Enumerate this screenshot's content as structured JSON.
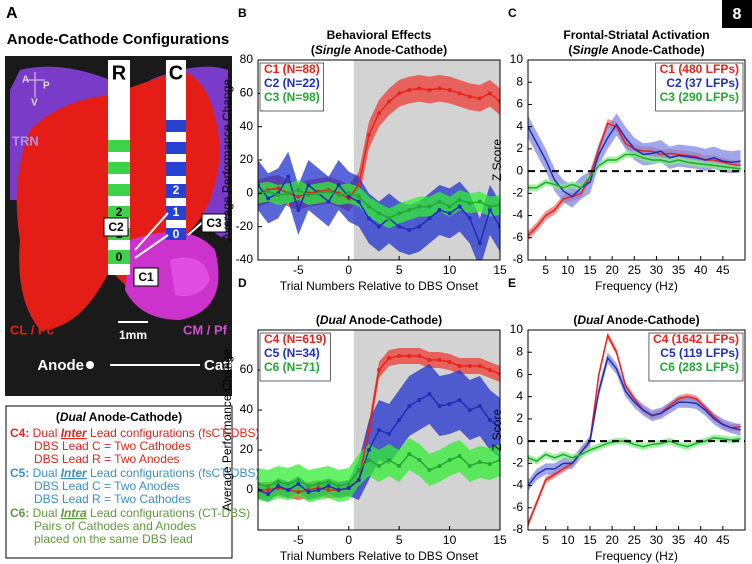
{
  "page_number": "8",
  "panel_a": {
    "label": "A",
    "title": "Anode-Cathode Configurations",
    "orientation": {
      "anterior": "A",
      "posterior": "P",
      "ventral": "V"
    },
    "leads": [
      {
        "name": "R",
        "contacts": [
          "2",
          "1",
          "0"
        ]
      },
      {
        "name": "C",
        "contacts": [
          "2",
          "1",
          "0"
        ]
      }
    ],
    "regions": [
      "TRN",
      "CL / Pc",
      "CM / Pf"
    ],
    "configs": [
      "C1",
      "C2",
      "C3"
    ],
    "scale": "1mm",
    "direction": {
      "from": "Anode",
      "to": "Cathode"
    }
  },
  "configurations_legend": {
    "heading": {
      "pre": "(",
      "em": "Dual",
      "post": " Anode-Cathode)"
    },
    "items": [
      {
        "id": "C4:",
        "pre": " Dual ",
        "em": "Inter",
        "post": " Lead configurations (fsCT-DBS)",
        "lines": [
          "DBS Lead C = Two Cathodes",
          "DBS Lead R = Two Anodes"
        ],
        "color": "#e0261d"
      },
      {
        "id": "C5:",
        "pre": " Dual ",
        "em": "Inter",
        "post": " Lead configurations (fsCT-DBS)",
        "lines": [
          "DBS Lead C = Two Anodes",
          "DBS Lead R = Two Cathodes"
        ],
        "color": "#3c8fc4"
      },
      {
        "id": "C6:",
        "pre": " Dual ",
        "em": "Intra",
        "post": " Lead configurations (CT-DBS)",
        "lines": [
          "Pairs of Cathodes and Anodes",
          "placed on the same DBS lead"
        ],
        "color": "#5f9a3c"
      }
    ]
  },
  "chart_data": [
    {
      "type": "line",
      "panel_label": "B",
      "title": "Behavioral Effects",
      "subtitle": {
        "pre": "(",
        "em": "Single",
        "post": " Anode-Cathode)"
      },
      "xlabel": "Trial Numbers Relative to DBS Onset",
      "ylabel": "Average Performance Change",
      "x": [
        -9,
        -8,
        -7,
        -6,
        -5,
        -4,
        -3,
        -2,
        -1,
        0,
        1,
        2,
        3,
        4,
        5,
        6,
        7,
        8,
        9,
        10,
        11,
        12,
        13,
        14,
        15
      ],
      "xlim": [
        -9,
        15
      ],
      "xticks": [
        -5,
        0,
        5,
        10,
        15
      ],
      "ylim": [
        -40,
        80
      ],
      "yticks": [
        -40,
        -20,
        0,
        20,
        40,
        60,
        80
      ],
      "shade_x": [
        0.5,
        15
      ],
      "markers": true,
      "legend": "upper left",
      "series": [
        {
          "name": "C1 (N=88)",
          "color": "#e8231c",
          "band_color": "#ee3b35",
          "values": [
            0,
            2,
            3,
            0,
            -2,
            0,
            1,
            2,
            0,
            -3,
            5,
            35,
            48,
            55,
            60,
            62,
            63,
            62,
            63,
            62,
            60,
            58,
            57,
            60,
            55
          ],
          "errors": [
            8,
            8,
            8,
            8,
            8,
            8,
            8,
            8,
            8,
            8,
            8,
            8,
            8,
            8,
            8,
            8,
            8,
            8,
            8,
            8,
            8,
            8,
            8,
            8,
            8
          ]
        },
        {
          "name": "C2 (N=22)",
          "color": "#1f2fb8",
          "band_color": "#2233cc",
          "values": [
            5,
            -3,
            0,
            10,
            -10,
            5,
            0,
            -5,
            5,
            -2,
            -5,
            -15,
            -20,
            -15,
            -20,
            -22,
            -20,
            -15,
            -10,
            -12,
            -8,
            -15,
            -30,
            -10,
            -20
          ],
          "errors": [
            15,
            15,
            15,
            15,
            15,
            15,
            15,
            15,
            15,
            15,
            15,
            15,
            15,
            15,
            15,
            15,
            15,
            15,
            15,
            15,
            15,
            15,
            15,
            15,
            15
          ]
        },
        {
          "name": "C3 (N=98)",
          "color": "#22a833",
          "band_color": "#33ee33",
          "values": [
            0,
            1,
            -1,
            0,
            2,
            -1,
            0,
            1,
            -1,
            0,
            -2,
            -8,
            -12,
            -15,
            -12,
            -10,
            -8,
            -8,
            -5,
            -8,
            -4,
            -6,
            -5,
            -8,
            -7
          ],
          "errors": [
            6,
            6,
            6,
            6,
            6,
            6,
            6,
            6,
            6,
            6,
            6,
            6,
            6,
            6,
            6,
            6,
            6,
            6,
            6,
            6,
            6,
            6,
            6,
            6,
            6
          ]
        }
      ]
    },
    {
      "type": "line",
      "panel_label": "C",
      "title": "Frontal-Striatal Activation",
      "subtitle": {
        "pre": "(",
        "em": "Single",
        "post": " Anode-Cathode)"
      },
      "xlabel": "Frequency (Hz)",
      "ylabel": "Z Score",
      "x": [
        1,
        3,
        5,
        7,
        9,
        11,
        13,
        15,
        17,
        19,
        21,
        23,
        25,
        27,
        29,
        31,
        33,
        35,
        37,
        39,
        41,
        43,
        45,
        47,
        49
      ],
      "xlim": [
        1,
        50
      ],
      "xticks": [
        5,
        10,
        15,
        20,
        25,
        30,
        35,
        40,
        45
      ],
      "ylim": [
        -8,
        10
      ],
      "yticks": [
        -8,
        -6,
        -4,
        -2,
        0,
        2,
        4,
        6,
        8,
        10
      ],
      "hline": 0,
      "markers": false,
      "legend": "upper right",
      "series": [
        {
          "name": "C1 (480 LFPs)",
          "color": "#e8231c",
          "band_color": "#f07070",
          "values": [
            -5.8,
            -5,
            -4,
            -3.5,
            -2.5,
            -2.3,
            -2,
            -0.5,
            2,
            4.3,
            4,
            2.5,
            2,
            1.8,
            1.8,
            1.5,
            1.6,
            1.5,
            1.4,
            1.3,
            1,
            1,
            0.8,
            0.6,
            0.5
          ],
          "errors": [
            0.4,
            0.4,
            0.4,
            0.4,
            0.4,
            0.4,
            0.4,
            0.4,
            0.4,
            0.4,
            0.4,
            0.4,
            0.4,
            0.4,
            0.4,
            0.4,
            0.4,
            0.4,
            0.4,
            0.4,
            0.4,
            0.4,
            0.4,
            0.4,
            0.4
          ]
        },
        {
          "name": "C2 (37 LFPs)",
          "color": "#1f2fb8",
          "band_color": "#8088e0",
          "values": [
            4,
            2.5,
            1,
            -0.8,
            -1.8,
            -2.3,
            -1.5,
            -1,
            1.5,
            3,
            4.2,
            3,
            2,
            1.5,
            1.6,
            1.8,
            1.2,
            1.4,
            1.3,
            1.2,
            1,
            1.2,
            0.9,
            0.8,
            0.9
          ],
          "errors": [
            1,
            1,
            1,
            1,
            1,
            1,
            1,
            1,
            1,
            1,
            1,
            1,
            1,
            1,
            1,
            1,
            1,
            1,
            1,
            1,
            1,
            1,
            1,
            1,
            1
          ]
        },
        {
          "name": "C3 (290 LFPs)",
          "color": "#22a833",
          "band_color": "#80ee80",
          "values": [
            -1.5,
            -1.5,
            -1,
            -1.2,
            -1.5,
            -1.2,
            -1.5,
            -0.5,
            0.5,
            1,
            1,
            1.5,
            1.5,
            1.2,
            1,
            1,
            0.8,
            1,
            0.8,
            0.7,
            0.6,
            0.5,
            0.4,
            0.3,
            0.2
          ],
          "errors": [
            0.3,
            0.3,
            0.3,
            0.3,
            0.3,
            0.3,
            0.3,
            0.3,
            0.3,
            0.3,
            0.3,
            0.3,
            0.3,
            0.3,
            0.3,
            0.3,
            0.3,
            0.3,
            0.3,
            0.3,
            0.3,
            0.3,
            0.3,
            0.3,
            0.3
          ]
        }
      ]
    },
    {
      "type": "line",
      "panel_label": "D",
      "subtitle": {
        "pre": "(",
        "em": "Dual",
        "post": " Anode-Cathode)"
      },
      "xlabel": "Trial Numbers Relative to DBS Onset",
      "ylabel": "Average Performance Change",
      "x": [
        -9,
        -8,
        -7,
        -6,
        -5,
        -4,
        -3,
        -2,
        -1,
        0,
        1,
        2,
        3,
        4,
        5,
        6,
        7,
        8,
        9,
        10,
        11,
        12,
        13,
        14,
        15
      ],
      "xlim": [
        -9,
        15
      ],
      "xticks": [
        -5,
        0,
        5,
        10,
        15
      ],
      "ylim": [
        -20,
        80
      ],
      "yticks": [
        0,
        20,
        40,
        60
      ],
      "shade_x": [
        0.5,
        15
      ],
      "markers": true,
      "legend": "upper left",
      "series": [
        {
          "name": "C4 (N=619)",
          "color": "#e8231c",
          "band_color": "#ee3b35",
          "values": [
            0,
            0,
            1,
            0,
            -1,
            0,
            1,
            0,
            0,
            1,
            5,
            30,
            60,
            66,
            67,
            67,
            67,
            65,
            65,
            64,
            62,
            62,
            62,
            60,
            58
          ],
          "errors": [
            4,
            4,
            4,
            4,
            4,
            4,
            4,
            4,
            4,
            4,
            4,
            4,
            4,
            4,
            4,
            4,
            4,
            4,
            4,
            4,
            4,
            4,
            4,
            4,
            4
          ]
        },
        {
          "name": "C5 (N=34)",
          "color": "#1f2fb8",
          "band_color": "#2233cc",
          "values": [
            0,
            -2,
            2,
            0,
            3,
            -1,
            0,
            2,
            0,
            1,
            5,
            20,
            30,
            28,
            35,
            42,
            45,
            48,
            42,
            43,
            45,
            40,
            42,
            35,
            31
          ],
          "errors": [
            4,
            4,
            4,
            4,
            4,
            4,
            4,
            4,
            4,
            4,
            10,
            15,
            15,
            15,
            15,
            15,
            15,
            15,
            15,
            15,
            15,
            15,
            15,
            15,
            15
          ]
        },
        {
          "name": "C6 (N=71)",
          "color": "#22a833",
          "band_color": "#33ee33",
          "values": [
            3,
            2,
            4,
            3,
            5,
            2,
            3,
            4,
            2,
            3,
            10,
            15,
            12,
            15,
            12,
            18,
            15,
            10,
            12,
            15,
            17,
            12,
            14,
            13,
            15
          ],
          "errors": [
            8,
            8,
            8,
            8,
            8,
            8,
            8,
            8,
            8,
            8,
            8,
            8,
            8,
            8,
            8,
            8,
            8,
            8,
            8,
            8,
            8,
            8,
            8,
            8,
            8
          ]
        }
      ]
    },
    {
      "type": "line",
      "panel_label": "E",
      "subtitle": {
        "pre": "(",
        "em": "Dual",
        "post": " Anode-Cathode)"
      },
      "xlabel": "Frequency (Hz)",
      "ylabel": "Z Score",
      "x": [
        1,
        3,
        5,
        7,
        9,
        11,
        13,
        15,
        17,
        19,
        21,
        23,
        25,
        27,
        29,
        31,
        33,
        35,
        37,
        39,
        41,
        43,
        45,
        47,
        49
      ],
      "xlim": [
        1,
        50
      ],
      "xticks": [
        5,
        10,
        15,
        20,
        25,
        30,
        35,
        40,
        45
      ],
      "ylim": [
        -8,
        10
      ],
      "yticks": [
        -8,
        -6,
        -4,
        -2,
        0,
        2,
        4,
        6,
        8,
        10
      ],
      "hline": 0,
      "markers": false,
      "legend": "upper right",
      "series": [
        {
          "name": "C4 (1642 LFPs)",
          "color": "#e8231c",
          "band_color": "#f07070",
          "values": [
            -7.5,
            -5.5,
            -3.5,
            -3,
            -2.5,
            -2,
            -1,
            0,
            6,
            9.5,
            8,
            5,
            3.8,
            2.8,
            2.3,
            2.5,
            3.2,
            3.8,
            4,
            3.8,
            3,
            2.2,
            1.5,
            1.2,
            1.3
          ],
          "errors": [
            0.3,
            0.3,
            0.3,
            0.3,
            0.3,
            0.3,
            0.3,
            0.3,
            0.3,
            0.3,
            0.3,
            0.3,
            0.3,
            0.3,
            0.3,
            0.3,
            0.3,
            0.3,
            0.3,
            0.3,
            0.3,
            0.3,
            0.3,
            0.3,
            0.3
          ]
        },
        {
          "name": "C5 (119 LFPs)",
          "color": "#1f2fb8",
          "band_color": "#8088e0",
          "values": [
            -4,
            -3,
            -2.5,
            -2.5,
            -2,
            -2,
            -1,
            0,
            4.5,
            7.5,
            6.5,
            4.5,
            3.5,
            2.8,
            2.3,
            2.5,
            3,
            3.5,
            3.5,
            3.4,
            2.8,
            2,
            1.5,
            1.2,
            1
          ],
          "errors": [
            0.5,
            0.5,
            0.5,
            0.5,
            0.5,
            0.5,
            0.5,
            0.5,
            0.5,
            0.5,
            0.5,
            0.5,
            0.5,
            0.5,
            0.5,
            0.5,
            0.5,
            0.5,
            0.5,
            0.5,
            0.5,
            0.5,
            0.5,
            0.5,
            0.5
          ]
        },
        {
          "name": "C6 (283 LFPs)",
          "color": "#22a833",
          "band_color": "#80ee80",
          "values": [
            -1.5,
            -1.8,
            -1.2,
            -1.5,
            -1.2,
            -1.5,
            -1.2,
            -0.8,
            -0.5,
            -0.2,
            0,
            0,
            -0.3,
            -0.5,
            -0.3,
            -0.2,
            0,
            -0.3,
            -0.5,
            -0.2,
            0,
            0.3,
            0.2,
            0.1,
            0.2
          ],
          "errors": [
            0.3,
            0.3,
            0.3,
            0.3,
            0.3,
            0.3,
            0.3,
            0.3,
            0.3,
            0.3,
            0.3,
            0.3,
            0.3,
            0.3,
            0.3,
            0.3,
            0.3,
            0.3,
            0.3,
            0.3,
            0.3,
            0.3,
            0.3,
            0.3,
            0.3
          ]
        }
      ]
    }
  ]
}
